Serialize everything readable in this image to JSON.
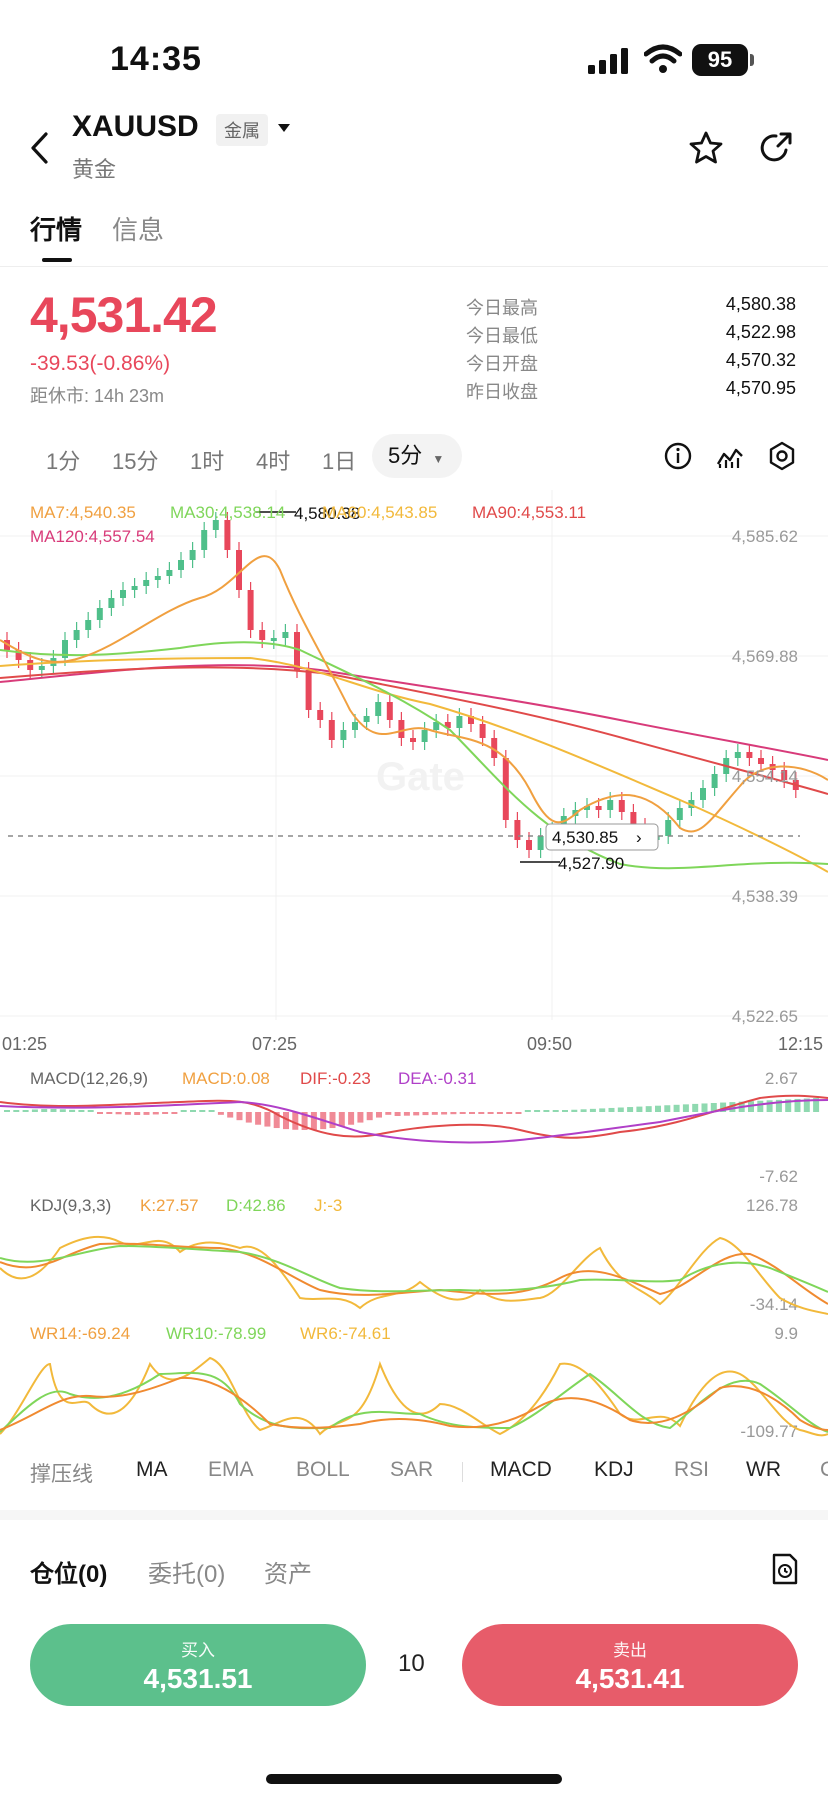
{
  "status_bar": {
    "time": "14:35",
    "battery": "95"
  },
  "header": {
    "symbol": "XAUUSD",
    "badge": "金属",
    "name": "黄金"
  },
  "tabs": [
    {
      "label": "行情"
    },
    {
      "label": "信息"
    }
  ],
  "quote": {
    "price": "4,531.42",
    "change": "-39.53(-0.86%)",
    "closing_in": "距休市: 14h 23m",
    "stats": [
      {
        "label": "今日最高",
        "value": "4,580.38"
      },
      {
        "label": "今日最低",
        "value": "4,522.98"
      },
      {
        "label": "今日开盘",
        "value": "4,570.32"
      },
      {
        "label": "昨日收盘",
        "value": "4,570.95"
      }
    ]
  },
  "timeframes": [
    "1分",
    "15分",
    "1时",
    "4时",
    "1日"
  ],
  "active_timeframe": "5分",
  "main_chart": {
    "ma_legend": {
      "ma7": "MA7:4,540.35",
      "ma30": "MA30:4,538.14",
      "ma60": "MA60:4,543.85",
      "ma90": "MA90:4,553.11",
      "ma120": "MA120:4,557.54"
    },
    "y_ticks": [
      "4,585.62",
      "4,569.88",
      "4,554.14",
      "4,538.39",
      "4,522.65"
    ],
    "x_ticks": [
      "01:25",
      "07:25",
      "09:50",
      "12:15"
    ],
    "high_label": "4,580.38",
    "low_label": "4,527.90",
    "current_label": "4,530.85",
    "watermark": "Gate"
  },
  "macd": {
    "title": "MACD(12,26,9)",
    "macd": "MACD:0.08",
    "dif": "DIF:-0.23",
    "dea": "DEA:-0.31",
    "top": "2.67",
    "bottom": "-7.62"
  },
  "kdj": {
    "title": "KDJ(9,3,3)",
    "k": "K:27.57",
    "d": "D:42.86",
    "j": "J:-3",
    "top": "126.78",
    "bottom": "-34.14"
  },
  "wr": {
    "wr14": "WR14:-69.24",
    "wr10": "WR10:-78.99",
    "wr6": "WR6:-74.61",
    "top": "9.9",
    "bottom": "-109.77"
  },
  "indicator_tabs": [
    "撑压线",
    "MA",
    "EMA",
    "BOLL",
    "SAR",
    "MACD",
    "KDJ",
    "RSI",
    "WR",
    "C"
  ],
  "bottom_tabs": [
    "仓位(0)",
    "委托(0)",
    "资产"
  ],
  "trade": {
    "buy_label": "买入",
    "buy_price": "4,531.51",
    "quantity": "10",
    "sell_label": "卖出",
    "sell_price": "4,531.41"
  },
  "colors": {
    "up": "#4fbf8a",
    "down": "#e8475b",
    "ma7": "#f0a040",
    "ma30": "#7fd65a",
    "ma60": "#f2b93b",
    "ma90": "#e04a4a",
    "ma120": "#d83b7a"
  }
}
